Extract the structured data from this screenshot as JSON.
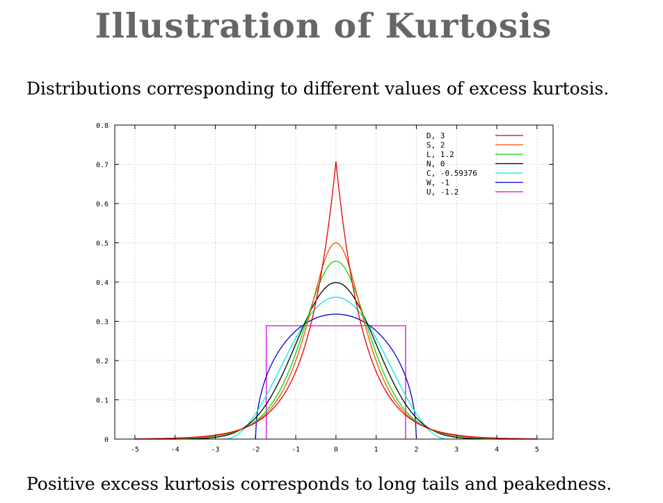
{
  "slide": {
    "title": "Illustration of Kurtosis",
    "subtitle": "Distributions corresponding to different values of excess kurtosis.",
    "footer": "Positive excess kurtosis corresponds to long tails and peakedness."
  },
  "chart_data": {
    "type": "line",
    "title": "",
    "xlabel": "",
    "ylabel": "",
    "xlim": [
      -5.5,
      5.4
    ],
    "ylim": [
      0,
      0.8
    ],
    "x_ticks": [
      -5,
      -4,
      -3,
      -2,
      -1,
      0,
      1,
      2,
      3,
      4,
      5
    ],
    "y_ticks": [
      0,
      0.1,
      0.2,
      0.3,
      0.4,
      0.5,
      0.6,
      0.7,
      0.8
    ],
    "x_tick_labels": [
      "-5",
      "-4",
      "-3",
      "-2",
      "-1",
      "0",
      "1",
      "2",
      "3",
      "4",
      "5"
    ],
    "y_tick_labels": [
      "0",
      "0.1",
      "0.2",
      "0.3",
      "0.4",
      "0.5",
      "0.6",
      "0.7",
      "0.8"
    ],
    "grid": true,
    "legend_position": "top-right",
    "series": [
      {
        "name": "D,  3",
        "distribution": "laplace",
        "color": "#dd0000"
      },
      {
        "name": "S,  2",
        "distribution": "hyperbolic-secant",
        "color": "#f05000"
      },
      {
        "name": "L,  1.2",
        "distribution": "logistic",
        "color": "#00dd00"
      },
      {
        "name": "N,  0",
        "distribution": "normal",
        "color": "#000000"
      },
      {
        "name": "C, -0.59376",
        "distribution": "raised-cosine",
        "color": "#00e8e8"
      },
      {
        "name": "W, -1",
        "distribution": "wigner-semicircle",
        "color": "#0000cc"
      },
      {
        "name": "U, -1.2",
        "distribution": "uniform",
        "color": "#dd00dd"
      }
    ]
  }
}
